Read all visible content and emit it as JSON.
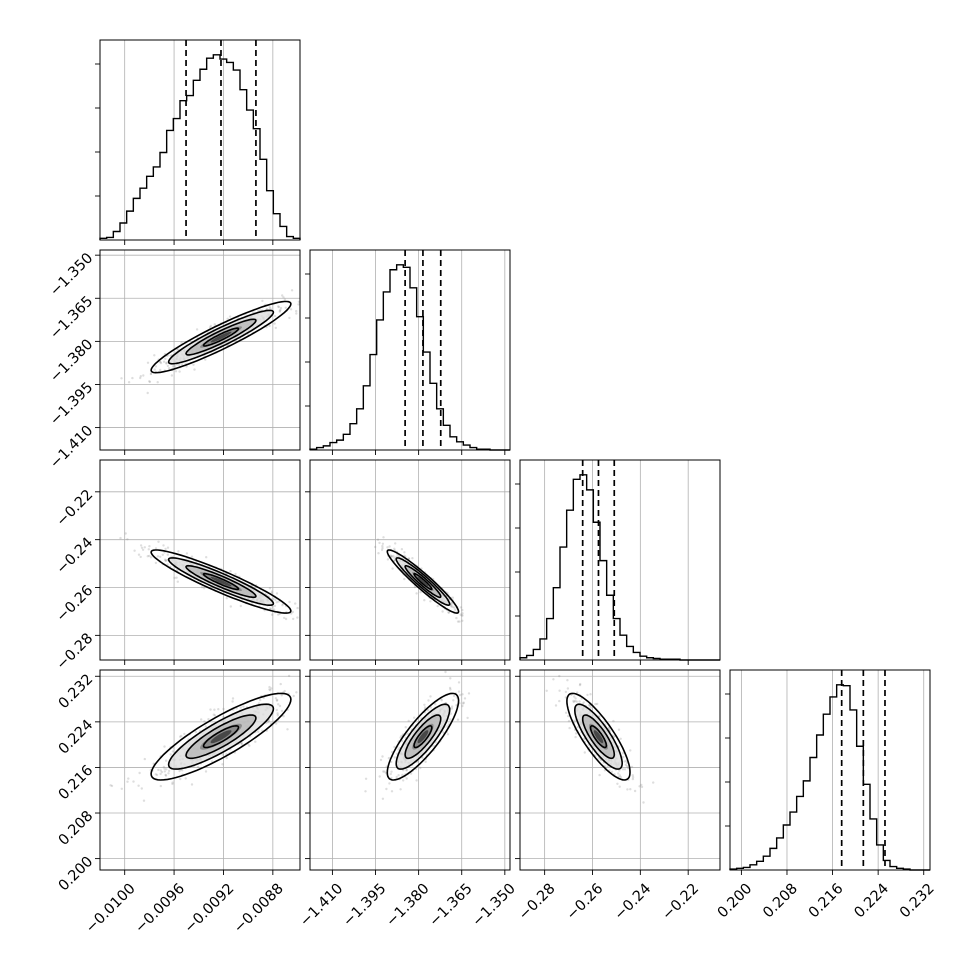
{
  "chart_data": {
    "type": "corner",
    "parameters": [
      {
        "ticks": [
          -0.01,
          -0.0096,
          -0.0092,
          -0.0088
        ],
        "tick_labels": [
          "−0.0100",
          "−0.0096",
          "−0.0092",
          "−0.0088"
        ],
        "range": [
          -0.0102,
          -0.00858
        ],
        "mean": -0.00922,
        "sd": 0.000283,
        "quantiles": [
          -0.009503,
          -0.00922,
          -0.008937
        ]
      },
      {
        "ticks": [
          -1.41,
          -1.395,
          -1.38,
          -1.365,
          -1.35
        ],
        "tick_labels": [
          "−1.410",
          "−1.395",
          "−1.380",
          "−1.365",
          "−1.350"
        ],
        "range": [
          -1.4178,
          -1.3482
        ],
        "mean": -1.3785,
        "sd": 0.0062,
        "quantiles": [
          -1.3847,
          -1.3785,
          -1.3723
        ]
      },
      {
        "ticks": [
          -0.28,
          -0.26,
          -0.24,
          -0.22
        ],
        "tick_labels": [
          "−0.28",
          "−0.26",
          "−0.24",
          "−0.22"
        ],
        "range": [
          -0.2903,
          -0.2067
        ],
        "mean": -0.2575,
        "sd": 0.0066,
        "quantiles": [
          -0.2641,
          -0.2575,
          -0.2509
        ]
      },
      {
        "ticks": [
          0.2,
          0.208,
          0.216,
          0.224,
          0.232
        ],
        "tick_labels": [
          "0.200",
          "0.208",
          "0.216",
          "0.224",
          "0.232"
        ],
        "range": [
          0.198,
          0.2331
        ],
        "mean": 0.2214,
        "sd": 0.0038,
        "quantiles": [
          0.2176,
          0.2214,
          0.2252
        ]
      }
    ],
    "histograms": [
      {
        "param": 0,
        "counts": [
          2,
          3,
          10,
          20,
          34,
          49,
          61,
          75,
          86,
          103,
          129,
          143,
          164,
          170,
          188,
          201,
          214,
          218,
          213,
          209,
          200,
          177,
          153,
          131,
          95,
          58,
          31,
          16,
          4,
          2
        ]
      },
      {
        "param": 1,
        "counts": [
          1,
          3,
          5,
          9,
          12,
          19,
          32,
          50,
          78,
          116,
          158,
          192,
          219,
          225,
          222,
          197,
          162,
          119,
          81,
          50,
          30,
          16,
          10,
          6,
          3,
          1,
          1,
          0,
          0,
          0
        ]
      },
      {
        "param": 2,
        "counts": [
          3,
          6,
          14,
          28,
          55,
          96,
          150,
          199,
          240,
          246,
          226,
          183,
          132,
          86,
          55,
          33,
          18,
          10,
          5,
          3,
          2,
          1,
          1,
          1,
          0,
          0,
          0,
          0,
          0,
          0
        ]
      },
      {
        "param": 3,
        "counts": [
          1,
          2,
          3,
          6,
          10,
          16,
          25,
          37,
          52,
          67,
          85,
          103,
          130,
          156,
          180,
          200,
          214,
          213,
          185,
          143,
          99,
          59,
          29,
          11,
          4,
          2,
          1,
          0,
          0,
          0
        ]
      }
    ],
    "correlations": [
      {
        "x": 0,
        "y": 1,
        "rho": 0.93
      },
      {
        "x": 0,
        "y": 2,
        "rho": -0.93
      },
      {
        "x": 1,
        "y": 2,
        "rho": -0.95
      },
      {
        "x": 0,
        "y": 3,
        "rho": 0.86
      },
      {
        "x": 1,
        "y": 3,
        "rho": 0.83
      },
      {
        "x": 2,
        "y": 3,
        "rho": -0.82
      }
    ],
    "contour_levels_sigma": [
      0.5,
      1.0,
      1.5,
      2.0
    ],
    "grid": true
  }
}
